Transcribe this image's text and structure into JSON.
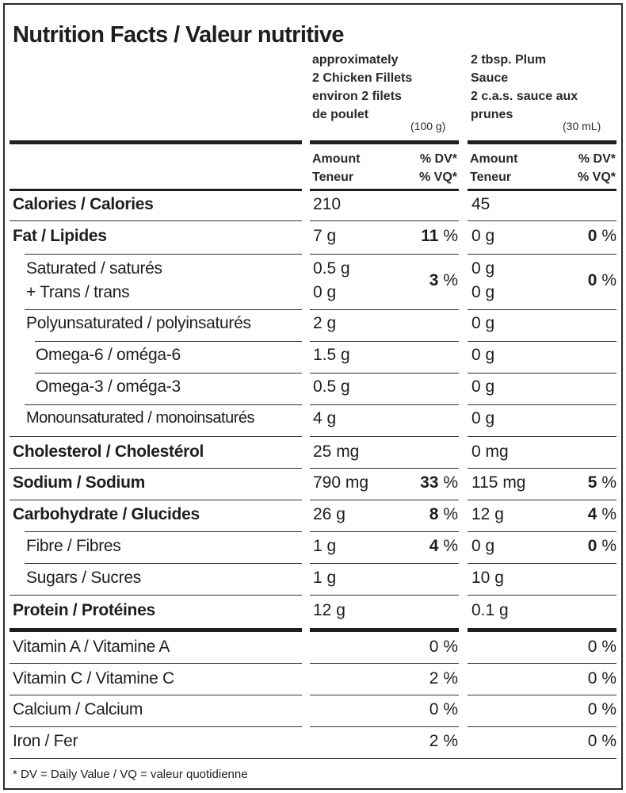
{
  "title": "Nutrition Facts / Valeur nutritive",
  "columns": [
    {
      "serving": "approximately\n2 Chicken Fillets\nenviron 2 filets\nde poulet",
      "weight": "(100 g)",
      "amount_header": "Amount\nTeneur",
      "dv_header": "% DV*\n% VQ*"
    },
    {
      "serving": "2 tbsp. Plum\nSauce\n2 c.a.s. sauce aux\nprunes",
      "weight": "(30 mL)",
      "amount_header": "Amount\nTeneur",
      "dv_header": "% DV*\n% VQ*"
    }
  ],
  "rows": {
    "calories": {
      "name": "Calories / Calories",
      "a1": "210",
      "a2": "45"
    },
    "fat": {
      "name": "Fat / Lipides",
      "a1": "7 g",
      "d1": "11",
      "a2": "0 g",
      "d2": "0"
    },
    "sat": {
      "name": "Saturated / saturés",
      "name2": "+ Trans / trans",
      "a1": "0.5 g",
      "a1b": "0 g",
      "d1": "3",
      "a2": "0 g",
      "a2b": "0 g",
      "d2": "0"
    },
    "poly": {
      "name": "Polyunsaturated / polyinsaturés",
      "a1": "2 g",
      "a2": "0 g"
    },
    "omega6": {
      "name": "Omega-6 / oméga-6",
      "a1": "1.5 g",
      "a2": "0 g"
    },
    "omega3": {
      "name": "Omega-3 / oméga-3",
      "a1": "0.5 g",
      "a2": "0 g"
    },
    "mono": {
      "name": "Monounsaturated / monoinsaturés",
      "a1": "4 g",
      "a2": "0 g"
    },
    "chol": {
      "name": "Cholesterol / Cholestérol",
      "a1": "25 mg",
      "a2": "0 mg"
    },
    "sodium": {
      "name": "Sodium / Sodium",
      "a1": "790 mg",
      "d1": "33",
      "a2": "115 mg",
      "d2": "5"
    },
    "carb": {
      "name": "Carbohydrate / Glucides",
      "a1": "26 g",
      "d1": "8",
      "a2": "12 g",
      "d2": "4"
    },
    "fibre": {
      "name": "Fibre / Fibres",
      "a1": "1 g",
      "d1": "4",
      "a2": "0 g",
      "d2": "0"
    },
    "sugars": {
      "name": "Sugars / Sucres",
      "a1": "1 g",
      "a2": "10 g"
    },
    "protein": {
      "name": "Protein / Protéines",
      "a1": "12 g",
      "a2": "0.1 g"
    },
    "vita": {
      "name": "Vitamin A / Vitamine A",
      "d1": "0",
      "d2": "0"
    },
    "vitc": {
      "name": "Vitamin C / Vitamine C",
      "d1": "2",
      "d2": "0"
    },
    "calcium": {
      "name": "Calcium / Calcium",
      "d1": "0",
      "d2": "0"
    },
    "iron": {
      "name": "Iron / Fer",
      "d1": "2",
      "d2": "0"
    }
  },
  "percent_sign": "%",
  "footnote": "* DV = Daily Value / VQ = valeur quotidienne"
}
